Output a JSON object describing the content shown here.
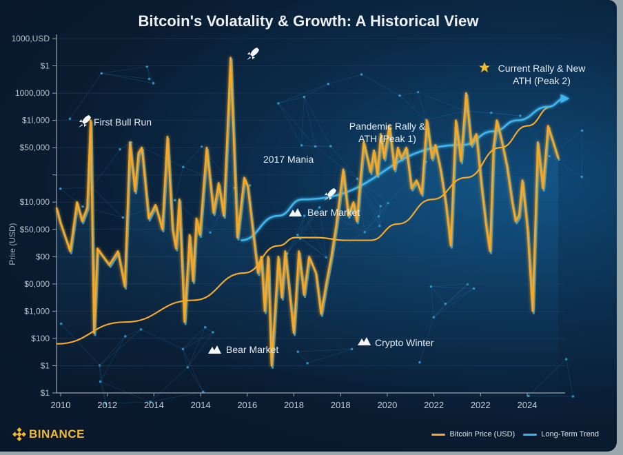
{
  "colors": {
    "price": "#f7a928",
    "trend": "#3fb6ee",
    "axis": "#9aa5b1",
    "text": "#e8edf2",
    "grid": "#1b3b5a",
    "brand": "#f3ba2f"
  },
  "brand": {
    "name": "BINANCE",
    "icon": "binance-logo-icon"
  },
  "chart_data": {
    "type": "line",
    "title": "Bitcoin's Volatality & Growth: A Historical View",
    "xlabel": "",
    "ylabel": "Price (USD)",
    "ylabel_as_rendered": "Priıe (USD)",
    "y_tick_labels": [
      "1000,USD",
      "$1",
      "1000,000",
      "$1İ,000",
      "$50,000",
      "",
      "$10,000",
      "$50,000",
      "$00",
      "$0,000",
      "$1,000",
      "$100",
      "$1",
      "$1"
    ],
    "x_tick_labels": [
      "2010",
      "2012",
      "2014",
      "2014",
      "2016",
      "2018",
      "2018",
      "2020",
      "2022",
      "2022",
      "2024"
    ],
    "y_axis": "tick-index scale (labels are non-monotonic as rendered); 0 = bottom tick, 13 = top tick",
    "ylim": [
      0,
      13
    ],
    "xlim": [
      2010,
      2024.9
    ],
    "grid": true,
    "legend": "bottom-right",
    "legend_entries": [
      "Bitcoin Price (USD)",
      "Long-Term Trend"
    ],
    "series": [
      {
        "name": "Bitcoin Price (USD)",
        "color": "#f7a928",
        "x": [
          2010.0,
          2010.1,
          2010.4,
          2010.6,
          2010.75,
          2010.9,
          2011.0,
          2011.1,
          2011.2,
          2011.55,
          2011.8,
          2012.0,
          2012.15,
          2012.3,
          2012.4,
          2012.5,
          2012.7,
          2012.9,
          2013.1,
          2013.25,
          2013.4,
          2013.5,
          2013.6,
          2013.75,
          2013.9,
          2014.0,
          2014.1,
          2014.2,
          2014.4,
          2014.6,
          2014.75,
          2014.9,
          2015.1,
          2015.3,
          2015.5,
          2015.6,
          2015.75,
          2015.9,
          2016.0,
          2016.1,
          2016.2,
          2016.3,
          2016.5,
          2016.6,
          2016.7,
          2016.8,
          2016.95,
          2017.1,
          2017.25,
          2017.4,
          2017.6,
          2017.75,
          2017.9,
          2018.05,
          2018.2,
          2018.3,
          2018.4,
          2018.55,
          2018.7,
          2018.8,
          2018.9,
          2019.0,
          2019.2,
          2019.3,
          2019.4,
          2019.5,
          2019.6,
          2019.75,
          2019.9,
          2020.0,
          2020.1,
          2020.25,
          2020.4,
          2020.55,
          2020.7,
          2020.85,
          2021.0,
          2021.1,
          2021.25,
          2021.4,
          2021.55,
          2021.7,
          2021.85,
          2022.0,
          2022.15,
          2022.3,
          2022.45,
          2022.6,
          2022.7,
          2022.8,
          2022.9,
          2023.05,
          2023.2,
          2023.35,
          2023.45,
          2023.55,
          2023.65,
          2023.8,
          2023.95,
          2024.1,
          2024.25,
          2024.4,
          2024.55,
          2024.7
        ],
        "y": [
          6.8,
          6.3,
          5.2,
          7.0,
          6.3,
          6.8,
          10.0,
          2.2,
          5.3,
          4.7,
          5.2,
          3.9,
          9.2,
          7.4,
          8.8,
          9.0,
          6.4,
          6.9,
          6.0,
          9.4,
          6.0,
          5.3,
          7.1,
          2.6,
          5.8,
          4.1,
          6.4,
          5.8,
          9.0,
          6.6,
          7.7,
          6.5,
          12.3,
          5.7,
          7.9,
          7.6,
          6.0,
          4.4,
          5.0,
          3.0,
          5.0,
          1.0,
          5.0,
          3.5,
          5.2,
          4.0,
          2.2,
          5.2,
          3.6,
          5.0,
          4.4,
          2.9,
          4.0,
          5.0,
          6.2,
          7.2,
          8.2,
          6.5,
          7.0,
          6.3,
          7.8,
          9.2,
          8.1,
          8.9,
          8.0,
          9.5,
          8.6,
          9.8,
          8.2,
          9.0,
          8.6,
          9.0,
          7.5,
          7.8,
          7.3,
          10.0,
          8.6,
          9.1,
          8.2,
          7.0,
          5.4,
          10.0,
          8.5,
          11.0,
          9.1,
          9.5,
          7.6,
          6.0,
          5.2,
          9.0,
          10.0,
          9.2,
          8.3,
          7.0,
          6.3,
          6.5,
          7.8,
          6.0,
          3.0,
          9.2,
          7.5,
          9.8,
          9.2,
          8.6
        ]
      },
      {
        "name": "Long-Term Trend",
        "color": "#3fb6ee",
        "x": [
          2015.4,
          2016.5,
          2017.2,
          2021.9,
          2022.8,
          2023.5,
          2024.4,
          2024.9
        ],
        "y": [
          5.6,
          6.5,
          7.1,
          9.1,
          9.6,
          10.0,
          10.5,
          10.8
        ]
      },
      {
        "name": "Smoothed Average",
        "color": "#f7a928",
        "x": [
          2010.0,
          2012.0,
          2014.0,
          2015.5,
          2016.5,
          2017.0,
          2017.6,
          2018.5,
          2019.2,
          2020.0,
          2021.0,
          2022.0,
          2023.0,
          2023.8,
          2024.5
        ],
        "y": [
          1.8,
          2.6,
          3.4,
          4.4,
          5.4,
          5.7,
          5.7,
          5.6,
          5.6,
          6.2,
          7.1,
          7.9,
          9.0,
          9.8,
          10.5
        ]
      }
    ],
    "annotations": [
      {
        "text": "First Bull Run",
        "icon": "rocket-icon",
        "x": 2011.2,
        "y": 10.0
      },
      {
        "text": "",
        "icon": "rocket-icon",
        "x": 2015.1,
        "y": 12.5
      },
      {
        "text": "2017 Mania",
        "icon": "",
        "x": 2016.2,
        "y": 8.6
      },
      {
        "text": "Bear Market",
        "icon": "mountain-icon",
        "x": 2017.3,
        "y": 6.5
      },
      {
        "text": "",
        "icon": "rocket-icon",
        "x": 2017.7,
        "y": 7.5
      },
      {
        "text": "Bear Market",
        "icon": "mountain-icon",
        "x": 2014.4,
        "y": 1.6
      },
      {
        "text": "Crypto Winter",
        "icon": "mountain-icon",
        "x": 2019.2,
        "y": 1.8
      },
      {
        "text": "Pandemic Rally &\nATH (Peak 1)",
        "icon": "",
        "x": 2019.9,
        "y": 9.8
      },
      {
        "text": "Current Rally & New\nATH (Peak 2)",
        "icon": "star-icon",
        "x": 2022.8,
        "y": 12.1
      }
    ]
  }
}
